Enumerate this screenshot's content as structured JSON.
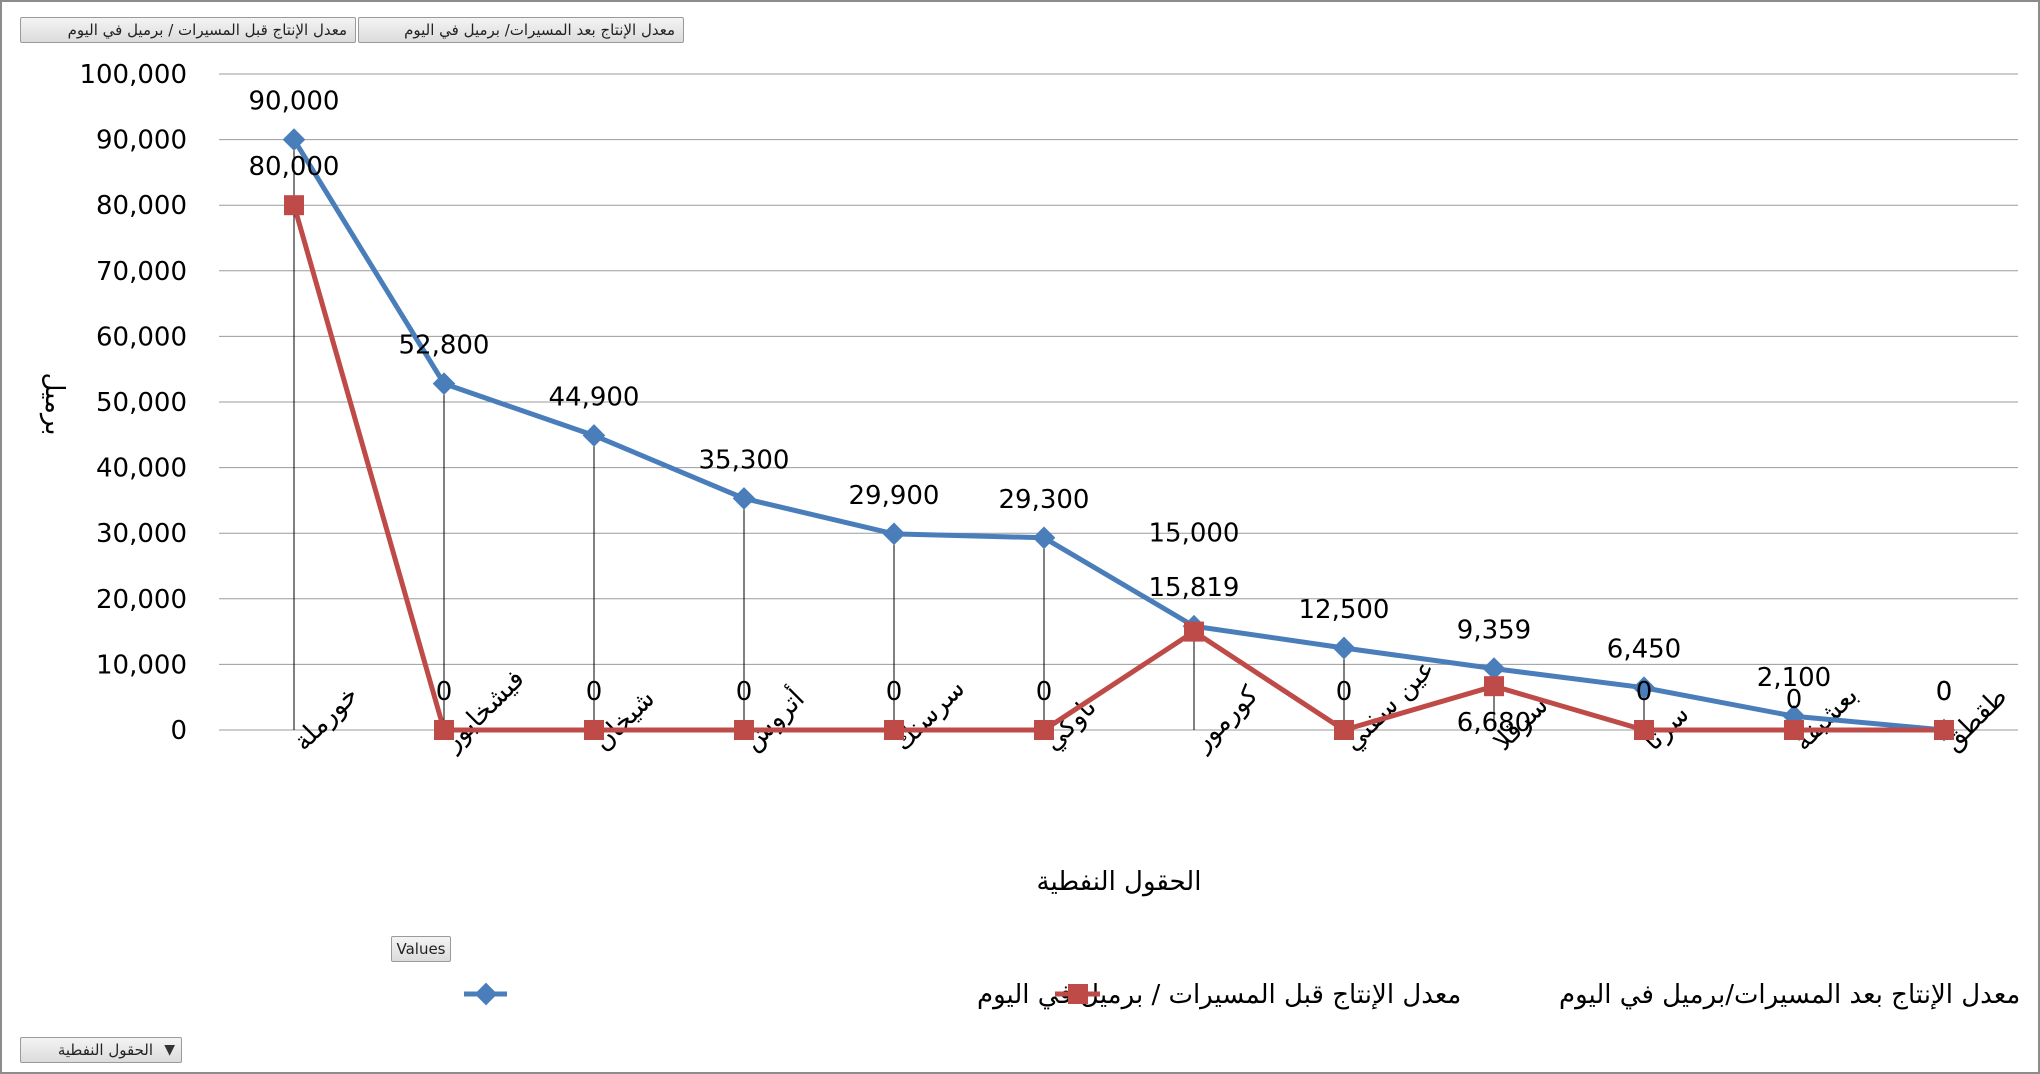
{
  "buttons": {
    "series_before": "معدل الإنتاج قبل المسيرات / برميل في اليوم",
    "series_after": "معدل الإنتاج بعد المسيرات/ برميل في اليوم",
    "values": "Values",
    "fields": "الحقول النفطية"
  },
  "colors": {
    "before": "#4a7ebb",
    "after": "#be4b48"
  },
  "chart_data": {
    "type": "line",
    "categories": [
      "خورملة",
      "فيشخابور",
      "شيخان",
      "أتروش",
      "سرسنك",
      "تاوكي",
      "كورمور",
      "عين سفني",
      "سرقلا",
      "سرتا",
      "بعشيقة",
      "طقطق"
    ],
    "series": [
      {
        "name": "معدل الإنتاج قبل المسيرات / برميل في اليوم",
        "values": [
          90000,
          52800,
          44900,
          35300,
          29900,
          29300,
          15819,
          12500,
          9359,
          6450,
          2100,
          0
        ],
        "labels": [
          "90,000",
          "52,800",
          "44,900",
          "35,300",
          "29,900",
          "29,300",
          "15,819",
          "12,500",
          "9,359",
          "6,450",
          "2,100",
          "0"
        ],
        "marker": "diamond"
      },
      {
        "name": "معدل الإنتاج بعد المسيرات/برميل في اليوم",
        "values": [
          80000,
          0,
          0,
          0,
          0,
          0,
          15000,
          0,
          6680,
          0,
          0,
          0
        ],
        "labels": [
          "80,000",
          "0",
          "0",
          "0",
          "0",
          "0",
          "15,000",
          "0",
          "6,680",
          "0",
          "0",
          "0"
        ],
        "marker": "square"
      }
    ],
    "xlabel": "الحقول النفطية",
    "ylabel": "برميل",
    "ylim": [
      0,
      100000
    ],
    "yticks": [
      0,
      10000,
      20000,
      30000,
      40000,
      50000,
      60000,
      70000,
      80000,
      90000,
      100000
    ],
    "ytick_labels": [
      "0",
      "10,000",
      "20,000",
      "30,000",
      "40,000",
      "50,000",
      "60,000",
      "70,000",
      "80,000",
      "90,000",
      "100,000"
    ],
    "grid": true,
    "drop_lines": true,
    "legend_position": "bottom"
  }
}
